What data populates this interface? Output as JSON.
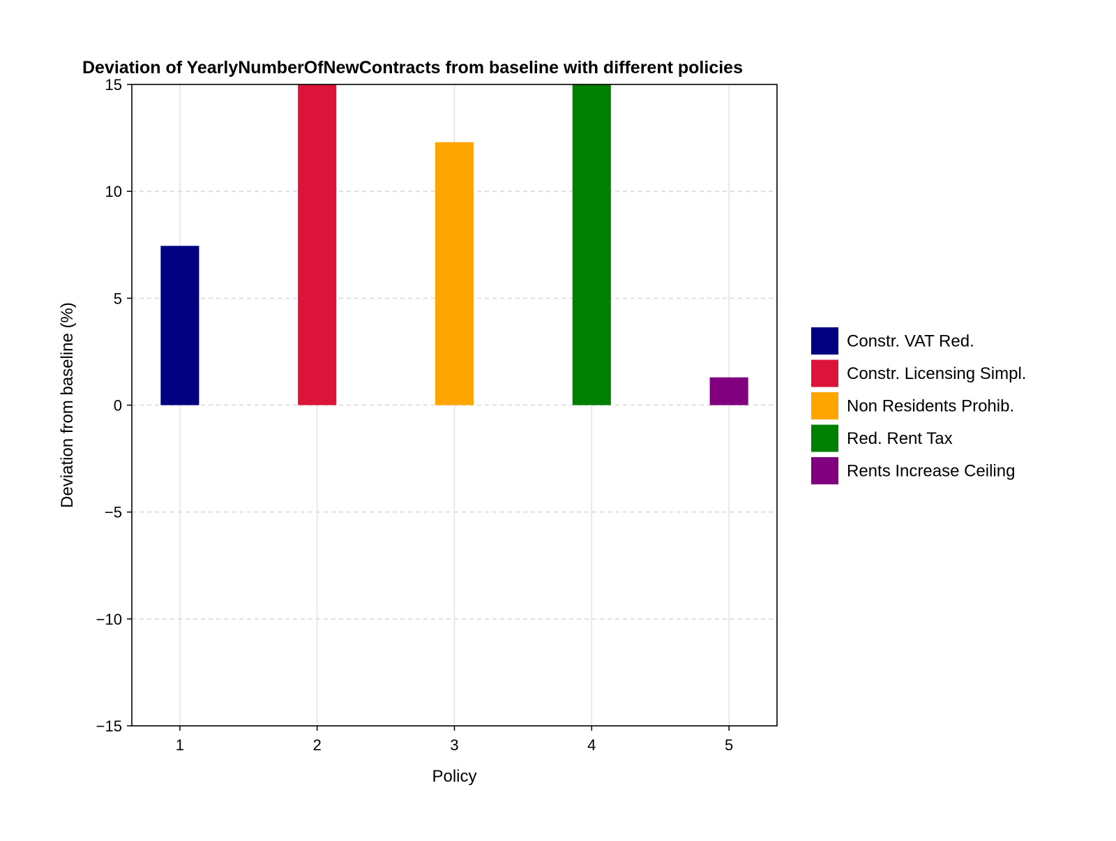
{
  "chart_data": {
    "type": "bar",
    "title": "Deviation of YearlyNumberOfNewContracts from baseline with different policies",
    "xlabel": "Policy",
    "ylabel": "Deviation from baseline (%)",
    "categories": [
      "1",
      "2",
      "3",
      "4",
      "5"
    ],
    "x": [
      1,
      2,
      3,
      4,
      5
    ],
    "values": [
      7.45,
      15,
      12.3,
      15,
      1.3
    ],
    "colors": [
      "#000080",
      "#dc143c",
      "#ffa500",
      "#008000",
      "#800080"
    ],
    "ylim": [
      -15,
      15
    ],
    "xlim": [
      0.65,
      5.35
    ],
    "yticks": [
      -15,
      -10,
      -5,
      0,
      5,
      10,
      15
    ],
    "ytick_labels": [
      "−15",
      "−10",
      "−5",
      "0",
      "5",
      "10",
      "15"
    ],
    "xticks": [
      1,
      2,
      3,
      4,
      5
    ],
    "xtick_labels": [
      "1",
      "2",
      "3",
      "4",
      "5"
    ],
    "grid": true,
    "legend_position": "right",
    "legend": [
      {
        "label": "Constr. VAT Red.",
        "color": "#000080"
      },
      {
        "label": "Constr. Licensing Simpl.",
        "color": "#dc143c"
      },
      {
        "label": "Non Residents Prohib.",
        "color": "#ffa500"
      },
      {
        "label": "Red. Rent Tax",
        "color": "#008000"
      },
      {
        "label": "Rents Increase Ceiling",
        "color": "#800080"
      }
    ]
  }
}
